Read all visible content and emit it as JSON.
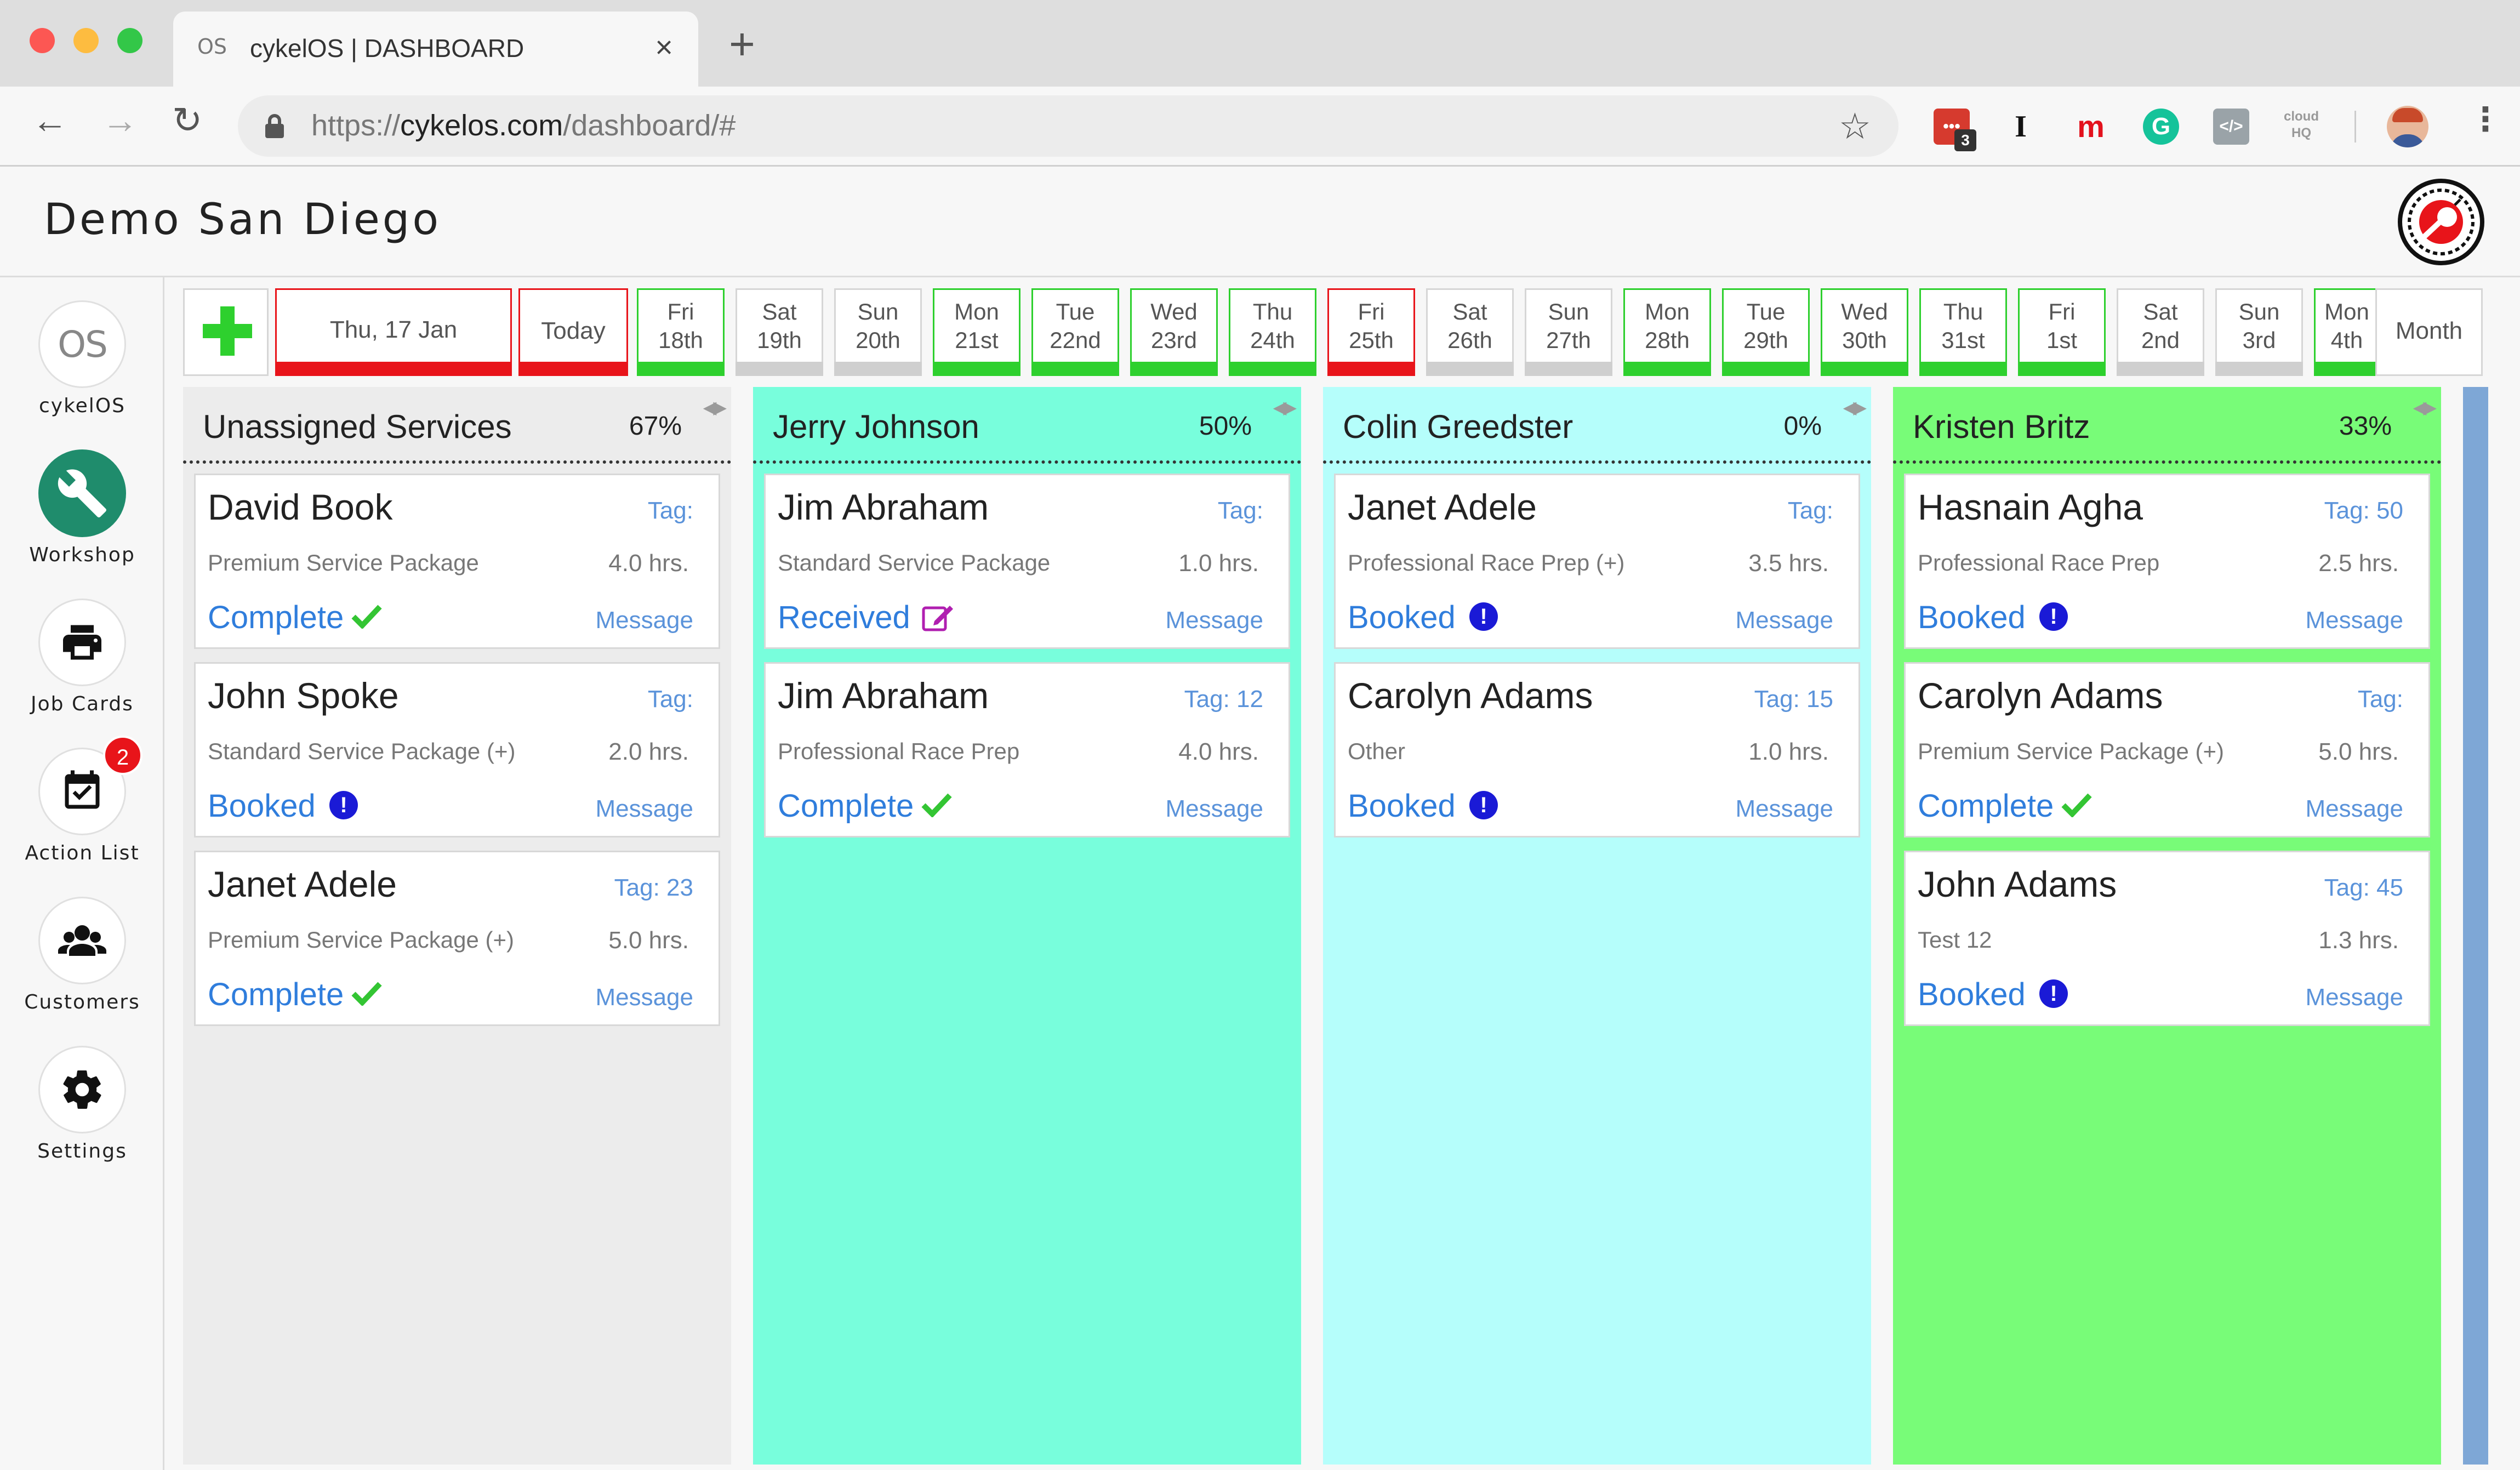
{
  "browser": {
    "tab_title": "cykelOS | DASHBOARD",
    "tab_favicon": "OS",
    "url_scheme": "https://",
    "url_host": "cykelos.com",
    "url_path": "/dashboard/#",
    "extension_badge": "3",
    "icons": [
      "back-arrow-icon",
      "forward-arrow-icon",
      "reload-icon",
      "lock-icon",
      "star-icon",
      "menu-dots-icon"
    ]
  },
  "app": {
    "shop_name": "Demo San Diego"
  },
  "sidebar": {
    "items": [
      {
        "label": "cykelOS",
        "icon": "os-logo-icon"
      },
      {
        "label": "Workshop",
        "icon": "wrench-icon"
      },
      {
        "label": "Job Cards",
        "icon": "printer-icon"
      },
      {
        "label": "Action List",
        "icon": "calendar-check-icon",
        "badge": "2"
      },
      {
        "label": "Customers",
        "icon": "users-icon"
      },
      {
        "label": "Settings",
        "icon": "gear-icon"
      }
    ]
  },
  "date_strip": {
    "current_date": "Thu, 17 Jan",
    "today_label": "Today",
    "month_label": "Month",
    "days": [
      {
        "l1": "Fri",
        "l2": "18th",
        "status": "green"
      },
      {
        "l1": "Sat",
        "l2": "19th",
        "status": "gray"
      },
      {
        "l1": "Sun",
        "l2": "20th",
        "status": "gray"
      },
      {
        "l1": "Mon",
        "l2": "21st",
        "status": "green"
      },
      {
        "l1": "Tue",
        "l2": "22nd",
        "status": "green"
      },
      {
        "l1": "Wed",
        "l2": "23rd",
        "status": "green"
      },
      {
        "l1": "Thu",
        "l2": "24th",
        "status": "green"
      },
      {
        "l1": "Fri",
        "l2": "25th",
        "status": "red"
      },
      {
        "l1": "Sat",
        "l2": "26th",
        "status": "gray"
      },
      {
        "l1": "Sun",
        "l2": "27th",
        "status": "gray"
      },
      {
        "l1": "Mon",
        "l2": "28th",
        "status": "green"
      },
      {
        "l1": "Tue",
        "l2": "29th",
        "status": "green"
      },
      {
        "l1": "Wed",
        "l2": "30th",
        "status": "green"
      },
      {
        "l1": "Thu",
        "l2": "31st",
        "status": "green"
      },
      {
        "l1": "Fri",
        "l2": "1st",
        "status": "green"
      },
      {
        "l1": "Sat",
        "l2": "2nd",
        "status": "gray"
      },
      {
        "l1": "Sun",
        "l2": "3rd",
        "status": "gray"
      },
      {
        "l1": "Mon",
        "l2": "4th",
        "status": "green"
      }
    ]
  },
  "colors": {
    "red": "#e8141a",
    "green": "#2ed02e",
    "gray": "#cfcfcf",
    "status_text": "#2f7ddc",
    "link": "#5b93da"
  },
  "columns": [
    {
      "name": "Unassigned Services",
      "percent": "67%",
      "bg": "#ececec",
      "cards": [
        {
          "name": "David Book",
          "tag": "Tag:",
          "service": "Premium Service Package",
          "hours": "4.0  hrs.",
          "status": "Complete",
          "status_icon": "check",
          "message": "Message"
        },
        {
          "name": "John Spoke",
          "tag": "Tag:",
          "service": "Standard Service Package (+)",
          "hours": "2.0  hrs.",
          "status": "Booked",
          "status_icon": "alert",
          "message": "Message"
        },
        {
          "name": "Janet Adele",
          "tag": "Tag: 23",
          "service": "Premium Service Package (+)",
          "hours": "5.0  hrs.",
          "status": "Complete",
          "status_icon": "check",
          "message": "Message"
        }
      ]
    },
    {
      "name": "Jerry Johnson",
      "percent": "50%",
      "bg": "#78fedc",
      "cards": [
        {
          "name": "Jim Abraham",
          "tag": "Tag:",
          "service": "Standard Service Package",
          "hours": "1.0  hrs.",
          "status": "Received",
          "status_icon": "edit",
          "message": "Message"
        },
        {
          "name": "Jim Abraham",
          "tag": "Tag: 12",
          "service": "Professional Race Prep",
          "hours": "4.0  hrs.",
          "status": "Complete",
          "status_icon": "check",
          "message": "Message"
        }
      ]
    },
    {
      "name": "Colin Greedster",
      "percent": "0%",
      "bg": "#b5fefb",
      "cards": [
        {
          "name": "Janet Adele",
          "tag": "Tag:",
          "service": "Professional Race Prep (+)",
          "hours": "3.5  hrs.",
          "status": "Booked",
          "status_icon": "alert",
          "message": "Message"
        },
        {
          "name": "Carolyn Adams",
          "tag": "Tag: 15",
          "service": "Other",
          "hours": "1.0  hrs.",
          "status": "Booked",
          "status_icon": "alert",
          "message": "Message"
        }
      ]
    },
    {
      "name": "Kristen Britz",
      "percent": "33%",
      "bg": "#78fc78",
      "cards": [
        {
          "name": "Hasnain Agha",
          "tag": "Tag: 50",
          "service": "Professional Race Prep",
          "hours": "2.5  hrs.",
          "status": "Booked",
          "status_icon": "alert",
          "message": "Message"
        },
        {
          "name": "Carolyn Adams",
          "tag": "Tag:",
          "service": "Premium Service Package (+)",
          "hours": "5.0  hrs.",
          "status": "Complete",
          "status_icon": "check",
          "message": "Message"
        },
        {
          "name": "John Adams",
          "tag": "Tag: 45",
          "service": "Test 12",
          "hours": "1.3  hrs.",
          "status": "Booked",
          "status_icon": "alert",
          "message": "Message"
        }
      ]
    }
  ]
}
